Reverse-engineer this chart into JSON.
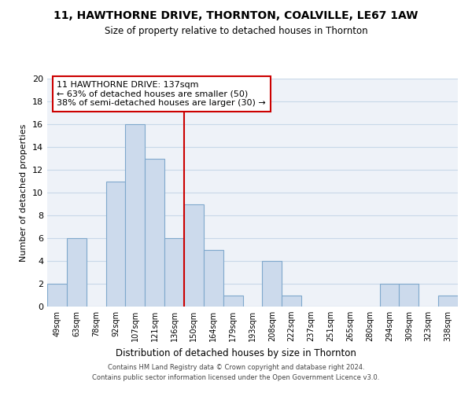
{
  "title": "11, HAWTHORNE DRIVE, THORNTON, COALVILLE, LE67 1AW",
  "subtitle": "Size of property relative to detached houses in Thornton",
  "xlabel": "Distribution of detached houses by size in Thornton",
  "ylabel": "Number of detached properties",
  "bin_labels": [
    "49sqm",
    "63sqm",
    "78sqm",
    "92sqm",
    "107sqm",
    "121sqm",
    "136sqm",
    "150sqm",
    "164sqm",
    "179sqm",
    "193sqm",
    "208sqm",
    "222sqm",
    "237sqm",
    "251sqm",
    "265sqm",
    "280sqm",
    "294sqm",
    "309sqm",
    "323sqm",
    "338sqm"
  ],
  "bar_heights": [
    2,
    6,
    0,
    11,
    16,
    13,
    6,
    9,
    5,
    1,
    0,
    4,
    1,
    0,
    0,
    0,
    0,
    2,
    2,
    0,
    1
  ],
  "bar_color": "#ccdaec",
  "bar_edgecolor": "#7fa8cc",
  "vline_x_index": 6,
  "vline_color": "#cc0000",
  "annotation_text": "11 HAWTHORNE DRIVE: 137sqm\n← 63% of detached houses are smaller (50)\n38% of semi-detached houses are larger (30) →",
  "annotation_box_edgecolor": "#cc0000",
  "annotation_box_facecolor": "#ffffff",
  "ylim": [
    0,
    20
  ],
  "yticks": [
    0,
    2,
    4,
    6,
    8,
    10,
    12,
    14,
    16,
    18,
    20
  ],
  "footer_line1": "Contains HM Land Registry data © Crown copyright and database right 2024.",
  "footer_line2": "Contains public sector information licensed under the Open Government Licence v3.0.",
  "grid_color": "#c8d8e8",
  "background_color": "#eef2f8"
}
